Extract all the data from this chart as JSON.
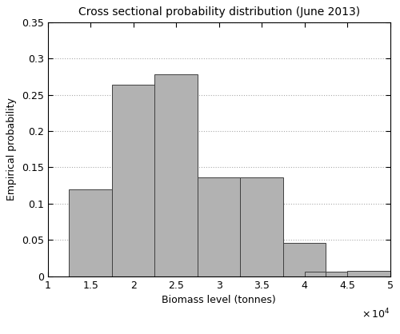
{
  "title": "Cross sectional probability distribution (June 2013)",
  "xlabel": "Biomass level (tonnes)",
  "ylabel": "Empirical probability",
  "bar_lefts": [
    1.25,
    1.75,
    2.25,
    2.75,
    3.25,
    3.75,
    4.0,
    4.25,
    4.5
  ],
  "bar_heights": [
    0.12,
    0.264,
    0.278,
    0.136,
    0.136,
    0.046,
    0.006,
    0.006,
    0.008
  ],
  "bar_width": 0.5,
  "bar_color": "#b2b2b2",
  "bar_edge_color": "#404040",
  "bar_edge_width": 0.7,
  "xlim": [
    1.0,
    5.0
  ],
  "ylim": [
    0,
    0.35
  ],
  "xticks": [
    1,
    1.5,
    2,
    2.5,
    3,
    3.5,
    4,
    4.5,
    5
  ],
  "yticks": [
    0,
    0.05,
    0.1,
    0.15,
    0.2,
    0.25,
    0.3,
    0.35
  ],
  "ytick_labels": [
    "0",
    "0.05",
    "0.1",
    "0.15",
    "0.2",
    "0.25",
    "0.3",
    "0.35"
  ],
  "xtick_labels": [
    "1",
    "1.5",
    "2",
    "2.5",
    "3",
    "3.5",
    "4",
    "4.5",
    "5"
  ],
  "background_color": "#ffffff",
  "grid_color": "#aaaaaa",
  "title_fontsize": 10,
  "axis_fontsize": 9,
  "tick_fontsize": 9
}
